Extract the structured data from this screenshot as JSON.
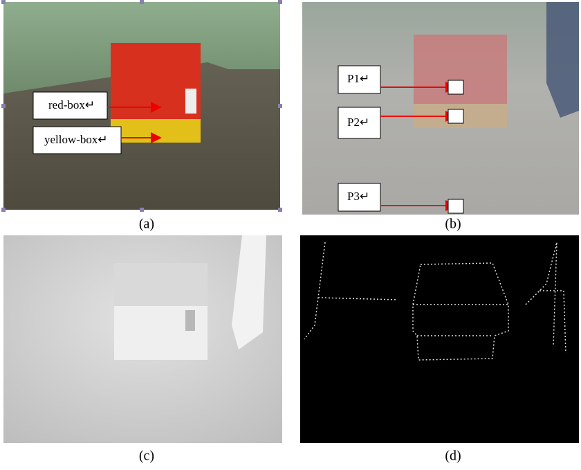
{
  "panels": [
    {
      "caption": "(a)",
      "labels": [
        "red-box↵",
        "yellow-box↵"
      ]
    },
    {
      "caption": "(b)",
      "labels": [
        "P1↵",
        "P2↵",
        "P3↵"
      ]
    },
    {
      "caption": "(c)"
    },
    {
      "caption": "(d)"
    }
  ]
}
